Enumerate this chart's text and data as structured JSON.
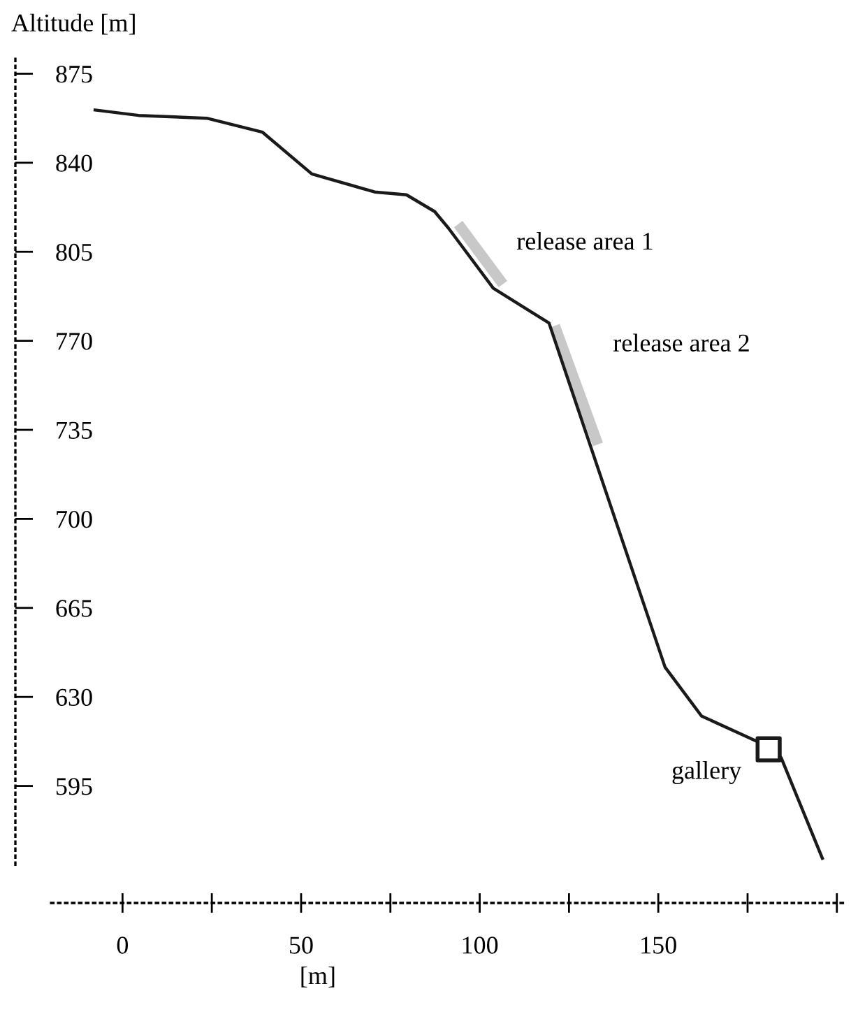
{
  "chart_data": {
    "type": "line",
    "ylabel": "Altitude [m]",
    "xlabel": "[m]",
    "series": [
      {
        "color": "#1a1a1a",
        "x": [
          -8.1,
          4.5,
          23.6,
          39.2,
          53.0,
          70.6,
          79.5,
          87.4,
          91.3,
          103.8,
          119.4,
          151.9,
          162.1,
          177.4,
          184.4,
          196.1
        ],
        "values": [
          860.8,
          858.6,
          857.5,
          852.0,
          835.6,
          828.5,
          827.4,
          820.8,
          814.2,
          790.7,
          777.0,
          641.7,
          622.5,
          612.7,
          606.1,
          566
        ]
      },
      {
        "name": "release area 1",
        "color": "#c8c8c8",
        "x": [
          94.0,
          106.5
        ],
        "values": [
          815.9,
          792.3
        ]
      },
      {
        "name": "release area 2",
        "color": "#c8c8c8",
        "x": [
          121.0,
          133.1
        ],
        "values": [
          775.9,
          729.3
        ]
      },
      {
        "name": "gallery",
        "type": "scatter",
        "color": "#1a1a1a",
        "marker": "square",
        "x": [
          180.9
        ],
        "values": [
          609.4
        ]
      }
    ],
    "xlim": [
      -30,
      202
    ],
    "xticks": [
      0,
      {
        "value": 25,
        "label": null
      },
      50,
      {
        "value": 75,
        "label": null
      },
      100,
      {
        "value": 125,
        "label": null
      },
      150,
      {
        "value": 175,
        "label": null
      },
      {
        "value": 200,
        "label": null
      }
    ],
    "ylim": [
      549,
      882
    ],
    "yticks": [
      595,
      630,
      665,
      700,
      735,
      770,
      805,
      840,
      875
    ],
    "grid": false,
    "legend": false
  }
}
